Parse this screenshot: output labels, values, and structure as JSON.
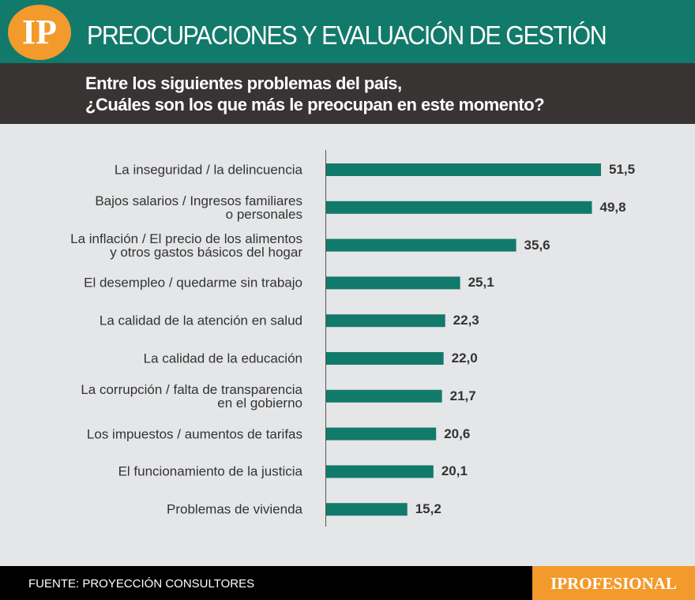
{
  "chart_data": {
    "type": "bar",
    "orientation": "horizontal",
    "logo": "IP",
    "title": "PREOCUPACIONES Y EVALUACIÓN DE GESTIÓN",
    "subtitle": "Entre los siguientes problemas del país,\n¿Cuáles son los que más le preocupan en este momento?",
    "categories": [
      "La inseguridad / la delincuencia",
      "Bajos salarios / Ingresos familiares\no personales",
      "La inflación / El precio de los alimentos\ny otros gastos básicos del hogar",
      "El desempleo / quedarme sin trabajo",
      "La calidad de la atención en salud",
      "La calidad de la educación",
      "La corrupción / falta de transparencia\nen el gobierno",
      "Los impuestos / aumentos de tarifas",
      "El funcionamiento de la justicia",
      "Problemas de vivienda"
    ],
    "values": [
      51.5,
      49.8,
      35.6,
      25.1,
      22.3,
      22.0,
      21.7,
      20.6,
      20.1,
      15.2
    ],
    "value_labels": [
      "51,5",
      "49,8",
      "35,6",
      "25,1",
      "22,3",
      "22,0",
      "21,7",
      "20,6",
      "20,1",
      "15,2"
    ],
    "color": "#127a6a",
    "source": "FUENTE: PROYECCIÓN CONSULTORES",
    "brand": "IPROFESIONAL"
  }
}
